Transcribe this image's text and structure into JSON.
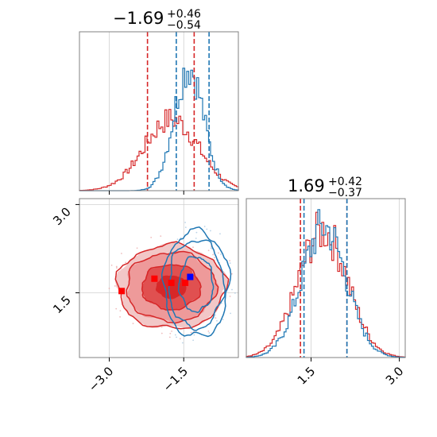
{
  "colors": {
    "red": "#d62728",
    "blue": "#1f77b4",
    "grid": "#d0d0d0",
    "frame": "#808080"
  },
  "chart_data": {
    "type": "corner",
    "params": [
      {
        "title_value": "−1.69",
        "title_plus": "+0.46",
        "title_minus": "−0.54"
      },
      {
        "title_value": "1.69",
        "title_plus": "+0.42",
        "title_minus": "−0.37"
      }
    ],
    "x_range": [
      -3.6,
      -0.4
    ],
    "y_range": [
      0.4,
      3.1
    ],
    "x_ticks": [
      {
        "value": -3.0,
        "label": "−3.0"
      },
      {
        "value": -1.5,
        "label": "−1.5"
      }
    ],
    "y_ticks": [
      {
        "value": 1.5,
        "label": "1.5"
      },
      {
        "value": 3.0,
        "label": "3.0"
      }
    ],
    "diag_ticks": [
      {
        "value": 1.5,
        "label": "1.5"
      },
      {
        "value": 3.0,
        "label": "3.0"
      }
    ],
    "p1_hist": {
      "red_center": -1.75,
      "red_sigma": 0.55,
      "red_scale": 0.45,
      "blue_center": -1.4,
      "blue_sigma": 0.3,
      "blue_scale": 0.78,
      "red_quantiles": [
        -2.23,
        -1.29
      ],
      "blue_quantiles": [
        -1.65,
        -0.99
      ]
    },
    "p2_hist": {
      "range": [
        0.4,
        3.1
      ],
      "red_center": 1.7,
      "red_sigma": 0.42,
      "red_scale": 0.8,
      "blue_center": 1.72,
      "blue_sigma": 0.38,
      "blue_scale": 0.82,
      "red_quantiles": [
        1.32,
        2.11
      ],
      "blue_quantiles": [
        1.38,
        2.11
      ]
    },
    "joint": {
      "red_center": [
        -1.75,
        1.6
      ],
      "red_radius": [
        0.95,
        0.62
      ],
      "blue_center": [
        -1.25,
        1.65
      ],
      "blue_radius": [
        0.55,
        0.75
      ],
      "red_points": [
        [
          -2.75,
          1.53
        ],
        [
          -2.09,
          1.74
        ],
        [
          -1.75,
          1.67
        ],
        [
          -1.47,
          1.67
        ]
      ],
      "blue_point": [
        -1.37,
        1.77
      ]
    }
  }
}
